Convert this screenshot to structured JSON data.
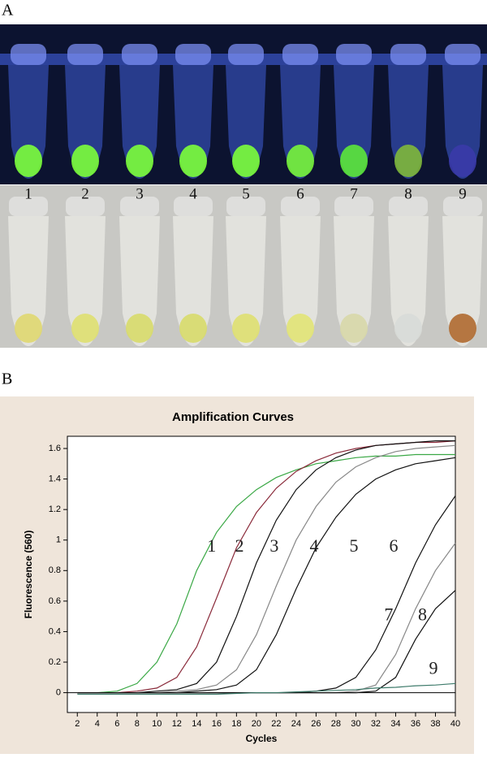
{
  "panel_a": {
    "label": "A",
    "tube_labels": [
      "1",
      "2",
      "3",
      "4",
      "5",
      "6",
      "7",
      "8",
      "9"
    ]
  },
  "panel_b_label": "B",
  "chart_data": {
    "type": "line",
    "title": "Amplification Curves",
    "x_label": "Cycles",
    "y_label": "Fluorescence (560)",
    "x": [
      2,
      4,
      6,
      8,
      10,
      12,
      14,
      16,
      18,
      20,
      22,
      24,
      26,
      28,
      30,
      32,
      34,
      36,
      38,
      40
    ],
    "xlim": [
      1,
      40
    ],
    "xticks": [
      2,
      4,
      6,
      8,
      10,
      12,
      14,
      16,
      18,
      20,
      22,
      24,
      26,
      28,
      30,
      32,
      34,
      36,
      38,
      40
    ],
    "ylim": [
      -0.13,
      1.68
    ],
    "yticks": [
      0,
      0.2,
      0.4,
      0.6,
      0.8,
      1,
      1.2,
      1.4,
      1.6
    ],
    "series": [
      {
        "name": "1",
        "color": "#3aa845",
        "values": [
          0,
          0,
          0.01,
          0.06,
          0.2,
          0.45,
          0.8,
          1.05,
          1.22,
          1.33,
          1.41,
          1.46,
          1.5,
          1.52,
          1.54,
          1.55,
          1.55,
          1.56,
          1.56,
          1.56
        ]
      },
      {
        "name": "2",
        "color": "#8a2a3a",
        "values": [
          0,
          0,
          0,
          0.01,
          0.03,
          0.1,
          0.3,
          0.62,
          0.95,
          1.18,
          1.34,
          1.45,
          1.52,
          1.57,
          1.6,
          1.62,
          1.63,
          1.64,
          1.64,
          1.65
        ]
      },
      {
        "name": "3",
        "color": "#111111",
        "values": [
          0,
          0,
          0,
          0,
          0.01,
          0.02,
          0.06,
          0.2,
          0.5,
          0.85,
          1.13,
          1.33,
          1.46,
          1.54,
          1.59,
          1.62,
          1.63,
          1.64,
          1.65,
          1.65
        ]
      },
      {
        "name": "4",
        "color": "#888888",
        "values": [
          0,
          0,
          0,
          0,
          0,
          0.01,
          0.02,
          0.05,
          0.15,
          0.38,
          0.7,
          1.0,
          1.22,
          1.38,
          1.48,
          1.54,
          1.58,
          1.6,
          1.61,
          1.62
        ]
      },
      {
        "name": "5",
        "color": "#111111",
        "values": [
          0,
          0,
          0,
          0,
          0,
          0,
          0.01,
          0.02,
          0.05,
          0.15,
          0.38,
          0.68,
          0.95,
          1.15,
          1.3,
          1.4,
          1.46,
          1.5,
          1.52,
          1.54
        ]
      },
      {
        "name": "6",
        "color": "#111111",
        "values": [
          0,
          0,
          0,
          0,
          0,
          0,
          0,
          0,
          0,
          0,
          0,
          0,
          0.01,
          0.03,
          0.1,
          0.28,
          0.55,
          0.85,
          1.1,
          1.29
        ]
      },
      {
        "name": "7",
        "color": "#888888",
        "values": [
          0,
          0,
          0,
          0,
          0,
          0,
          0,
          0,
          0,
          0,
          0,
          0,
          0,
          0,
          0.01,
          0.05,
          0.25,
          0.55,
          0.8,
          0.98
        ]
      },
      {
        "name": "8",
        "color": "#111111",
        "values": [
          0,
          0,
          0,
          0,
          0,
          0,
          0,
          0,
          0,
          0,
          0,
          0,
          0,
          0,
          0,
          0.01,
          0.1,
          0.35,
          0.55,
          0.67
        ]
      },
      {
        "name": "9",
        "color": "#3d7a6a",
        "values": [
          -0.01,
          -0.01,
          -0.01,
          -0.01,
          -0.01,
          -0.01,
          -0.01,
          -0.01,
          -0.005,
          0,
          0,
          0.005,
          0.01,
          0.015,
          0.02,
          0.03,
          0.035,
          0.045,
          0.05,
          0.06
        ]
      }
    ]
  }
}
